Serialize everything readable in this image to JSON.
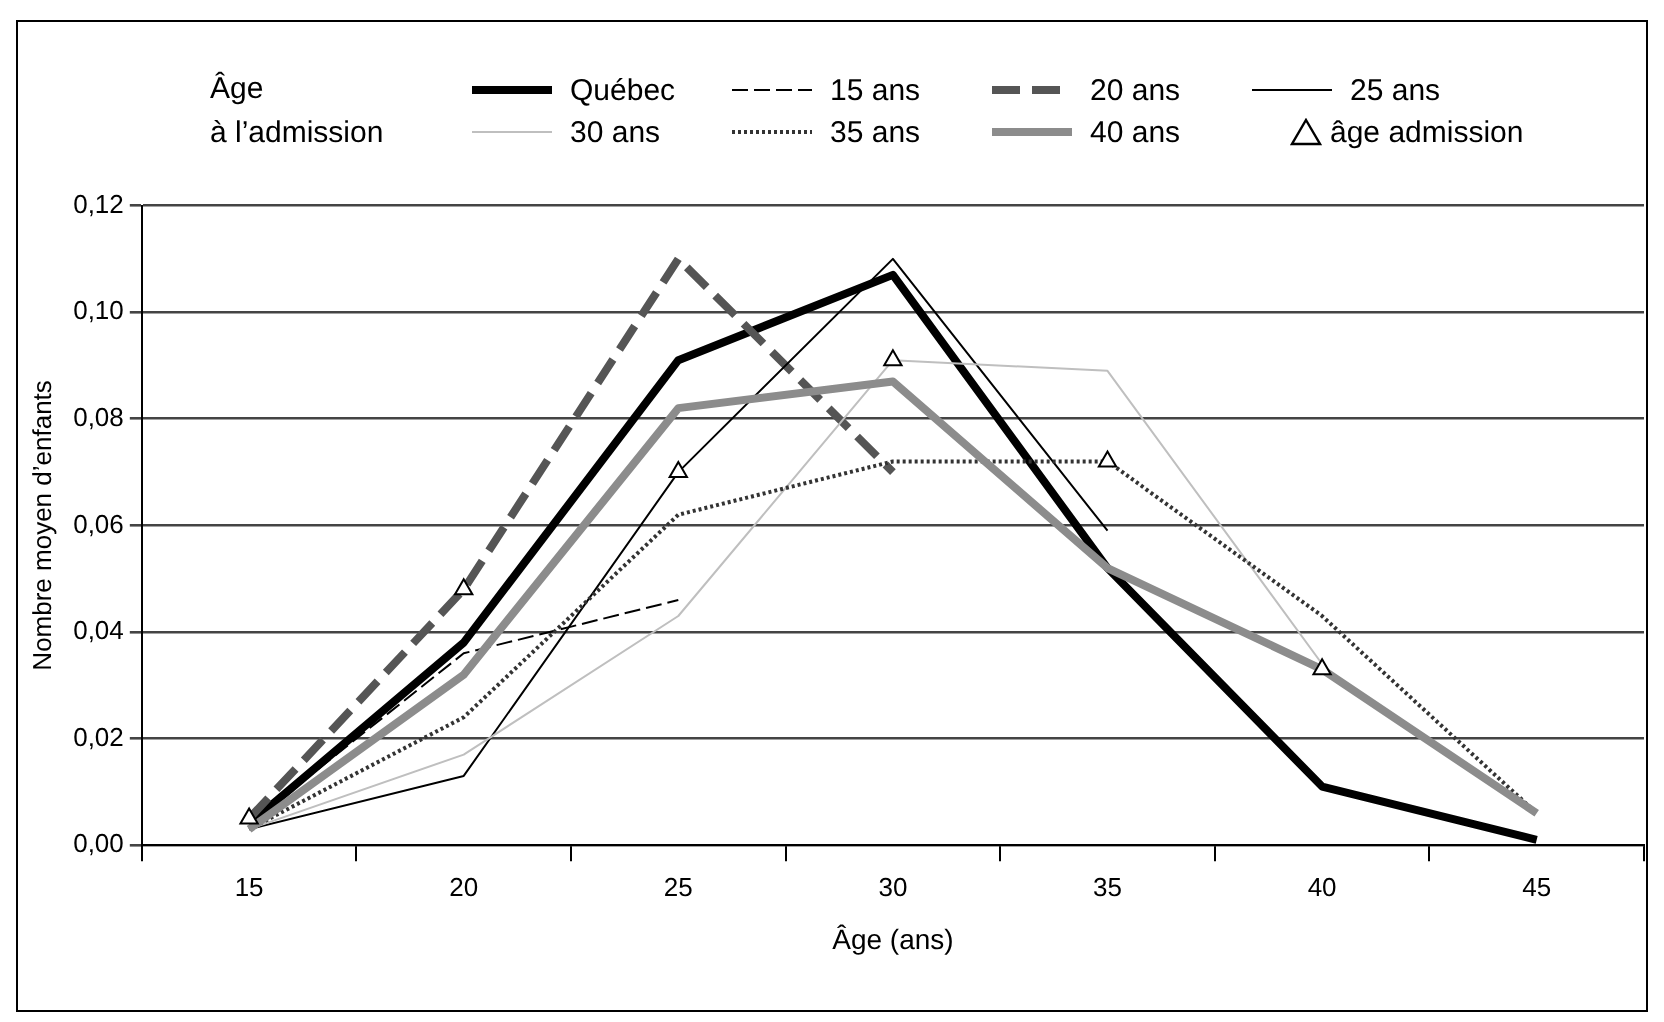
{
  "chart_data": {
    "type": "line",
    "xlabel": "Âge (ans)",
    "ylabel": "Nombre moyen d’enfants",
    "legend_title": "Âge à l’admission",
    "legend": "top",
    "grid": "y",
    "categories": [
      "15",
      "20",
      "25",
      "30",
      "35",
      "40",
      "45"
    ],
    "ylim": [
      0,
      0.12
    ],
    "yticks": [
      {
        "value": 0,
        "label": "0,00"
      },
      {
        "value": 0.02,
        "label": "0,02"
      },
      {
        "value": 0.04,
        "label": "0,04"
      },
      {
        "value": 0.06,
        "label": "0,06"
      },
      {
        "value": 0.08,
        "label": "0,08"
      },
      {
        "value": 0.1,
        "label": "0,10"
      },
      {
        "value": 0.12,
        "label": "0,12"
      }
    ],
    "series": [
      {
        "name": "Québec",
        "color": "#000000",
        "line_style": "solid",
        "values": [
          0.004,
          0.038,
          0.091,
          0.107,
          0.052,
          0.011,
          0.001
        ]
      },
      {
        "name": "15 ans",
        "color": "#000000",
        "line_style": "dashed",
        "values": [
          0.004,
          0.036,
          0.046,
          null,
          null,
          null,
          null
        ]
      },
      {
        "name": "20 ans",
        "color": "#555555",
        "line_style": "dashed",
        "values": [
          0.005,
          0.048,
          0.11,
          0.07,
          null,
          null,
          null
        ]
      },
      {
        "name": "25 ans",
        "color": "#000000",
        "line_style": "solid",
        "values": [
          0.003,
          0.013,
          0.07,
          0.11,
          0.059,
          null,
          null
        ]
      },
      {
        "name": "30 ans",
        "color": "#bfbfbf",
        "line_style": "solid",
        "values": [
          0.003,
          0.017,
          0.043,
          0.091,
          0.089,
          0.034,
          null
        ]
      },
      {
        "name": "35 ans",
        "color": "#333333",
        "line_style": "dotted",
        "values": [
          0.003,
          0.024,
          0.062,
          0.072,
          0.072,
          0.043,
          0.006
        ]
      },
      {
        "name": "40 ans",
        "color": "#8c8c8c",
        "line_style": "solid",
        "values": [
          0.003,
          0.032,
          0.082,
          0.087,
          0.052,
          0.033,
          0.006
        ]
      },
      {
        "name": "âge admission",
        "type": "scatter",
        "marker": "triangle",
        "color": "#000000",
        "values": [
          0.005,
          0.048,
          0.07,
          0.091,
          0.072,
          0.033,
          null
        ]
      }
    ]
  }
}
